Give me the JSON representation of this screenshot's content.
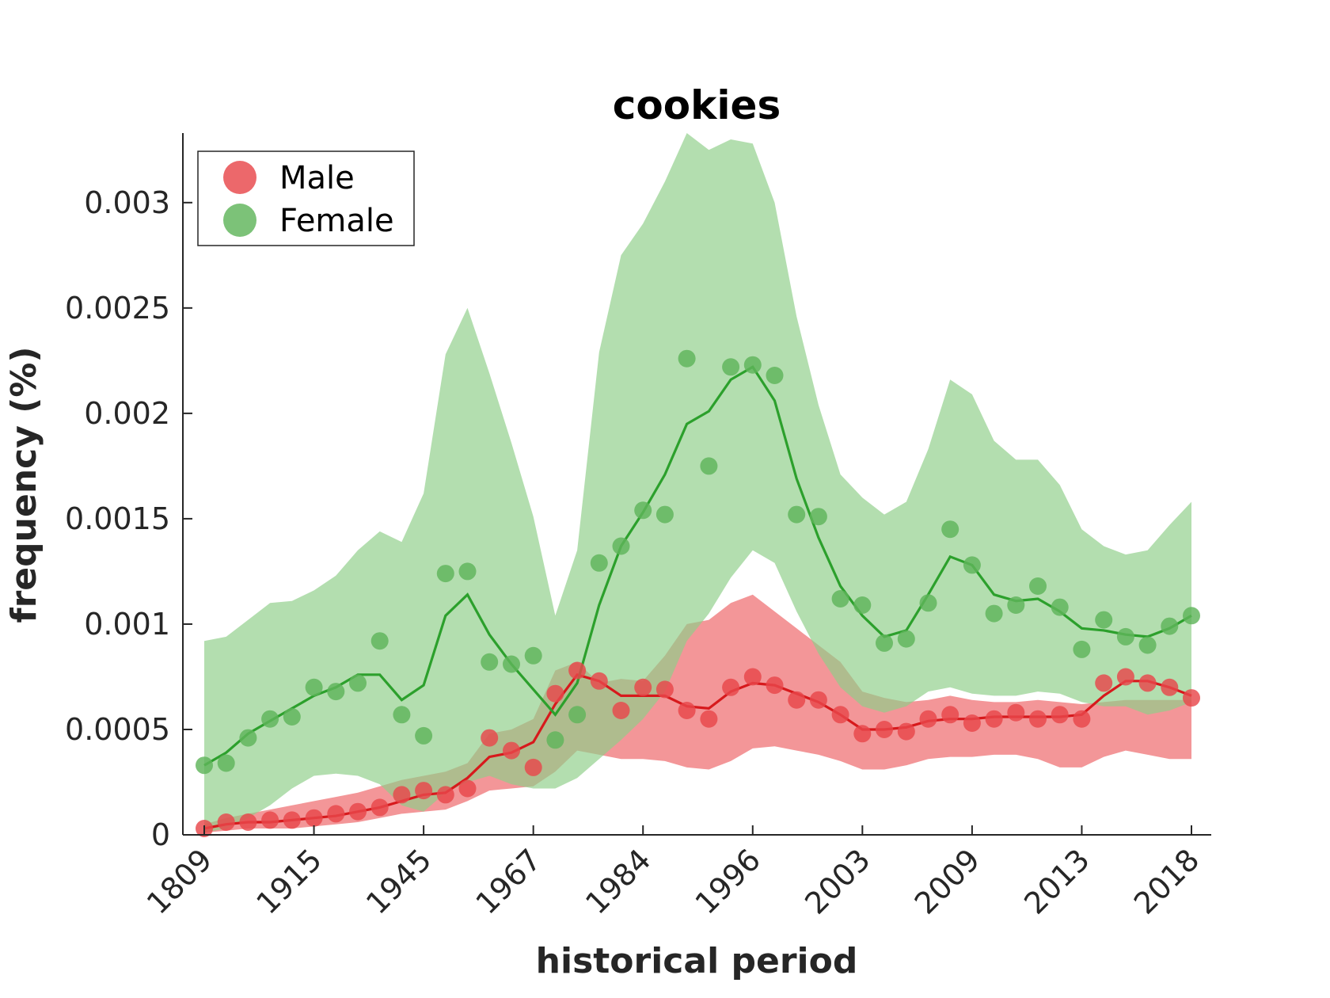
{
  "chart_data": {
    "type": "line",
    "title": "cookies",
    "xlabel": "historical period",
    "ylabel": "frequency (%)",
    "ylim": [
      0,
      0.00333
    ],
    "yticks": [
      {
        "value": 0,
        "label": "0"
      },
      {
        "value": 0.0005,
        "label": "0.0005"
      },
      {
        "value": 0.001,
        "label": "0.001"
      },
      {
        "value": 0.0015,
        "label": "0.0015"
      },
      {
        "value": 0.002,
        "label": "0.002"
      },
      {
        "value": 0.0025,
        "label": "0.0025"
      },
      {
        "value": 0.003,
        "label": "0.003"
      }
    ],
    "n_points": 46,
    "xticks": [
      {
        "index": 0,
        "label": "1809"
      },
      {
        "index": 5,
        "label": "1915"
      },
      {
        "index": 10,
        "label": "1945"
      },
      {
        "index": 15,
        "label": "1967"
      },
      {
        "index": 20,
        "label": "1984"
      },
      {
        "index": 25,
        "label": "1996"
      },
      {
        "index": 30,
        "label": "2003"
      },
      {
        "index": 35,
        "label": "2009"
      },
      {
        "index": 40,
        "label": "2013"
      },
      {
        "index": 45,
        "label": "2018"
      }
    ],
    "legend": {
      "position": "top-left"
    },
    "series": [
      {
        "name": "Male",
        "marker_color": "#e8474b",
        "line_color": "#d7191c",
        "band_color": "#ee6a6c",
        "points": [
          3e-05,
          6e-05,
          6e-05,
          7e-05,
          7e-05,
          8e-05,
          0.0001,
          0.00011,
          0.00013,
          0.00019,
          0.00021,
          0.00019,
          0.00022,
          0.00046,
          0.0004,
          0.00032,
          0.00067,
          0.00078,
          0.00073,
          0.00059,
          0.0007,
          0.00069,
          0.00059,
          0.00055,
          0.0007,
          0.00075,
          0.00071,
          0.00064,
          0.00064,
          0.00057,
          0.00048,
          0.0005,
          0.00049,
          0.00055,
          0.00057,
          0.00053,
          0.00055,
          0.00058,
          0.00055,
          0.00057,
          0.00055,
          0.00072,
          0.00075,
          0.00072,
          0.0007,
          0.00065
        ],
        "trend": [
          3e-05,
          5e-05,
          6e-05,
          6e-05,
          7e-05,
          8e-05,
          9e-05,
          0.00011,
          0.00013,
          0.00016,
          0.00019,
          0.0002,
          0.00027,
          0.00037,
          0.00039,
          0.00044,
          0.00062,
          0.00076,
          0.00073,
          0.00066,
          0.00066,
          0.00066,
          0.00061,
          0.0006,
          0.00068,
          0.00072,
          0.00071,
          0.00067,
          0.00063,
          0.00057,
          0.0005,
          0.0005,
          0.00051,
          0.00054,
          0.00055,
          0.00055,
          0.00056,
          0.00056,
          0.00056,
          0.00056,
          0.00057,
          0.00066,
          0.00073,
          0.00073,
          0.0007,
          0.00066
        ],
        "band_upper": [
          5e-05,
          8e-05,
          0.0001,
          0.00012,
          0.00014,
          0.00016,
          0.00018,
          0.0002,
          0.00023,
          0.00026,
          0.00028,
          0.0003,
          0.00034,
          0.00048,
          0.0005,
          0.00055,
          0.00078,
          0.00082,
          0.00072,
          0.00074,
          0.00073,
          0.00085,
          0.001,
          0.00102,
          0.0011,
          0.00114,
          0.00106,
          0.00098,
          0.0009,
          0.00082,
          0.00068,
          0.00065,
          0.00063,
          0.00064,
          0.00066,
          0.00064,
          0.00063,
          0.00063,
          0.00064,
          0.00063,
          0.00062,
          0.00063,
          0.00064,
          0.00064,
          0.00064,
          0.00064
        ],
        "band_lower": [
          1e-05,
          2e-05,
          3e-05,
          3e-05,
          3e-05,
          4e-05,
          5e-05,
          6e-05,
          8e-05,
          0.0001,
          0.00011,
          0.00012,
          0.00016,
          0.00021,
          0.00022,
          0.00023,
          0.0003,
          0.0004,
          0.00038,
          0.00036,
          0.00036,
          0.00035,
          0.00032,
          0.00031,
          0.00035,
          0.00041,
          0.00042,
          0.0004,
          0.00038,
          0.00035,
          0.00031,
          0.00031,
          0.00033,
          0.00036,
          0.00037,
          0.00037,
          0.00038,
          0.00038,
          0.00036,
          0.00032,
          0.00032,
          0.00037,
          0.0004,
          0.00038,
          0.00036,
          0.00036
        ]
      },
      {
        "name": "Female",
        "marker_color": "#5fb55a",
        "line_color": "#2ca02c",
        "band_color": "#8fce89",
        "points": [
          0.00033,
          0.00034,
          0.00046,
          0.00055,
          0.00056,
          0.0007,
          0.00068,
          0.00072,
          0.00092,
          0.00057,
          0.00047,
          0.00124,
          0.00125,
          0.00082,
          0.00081,
          0.00085,
          0.00045,
          0.00057,
          0.00129,
          0.00137,
          0.00154,
          0.00152,
          0.00226,
          0.00175,
          0.00222,
          0.00223,
          0.00218,
          0.00152,
          0.00151,
          0.00112,
          0.00109,
          0.00091,
          0.00093,
          0.0011,
          0.00145,
          0.00128,
          0.00105,
          0.00109,
          0.00118,
          0.00108,
          0.00088,
          0.00102,
          0.00094,
          0.0009,
          0.00099,
          0.00104
        ],
        "trend": [
          0.00033,
          0.00039,
          0.00048,
          0.00054,
          0.0006,
          0.00066,
          0.0007,
          0.00076,
          0.00076,
          0.00064,
          0.00071,
          0.00104,
          0.00114,
          0.00095,
          0.00081,
          0.00069,
          0.00057,
          0.00072,
          0.00109,
          0.00137,
          0.00153,
          0.00171,
          0.00195,
          0.00201,
          0.00216,
          0.00222,
          0.00206,
          0.00169,
          0.00141,
          0.00118,
          0.00104,
          0.00094,
          0.00097,
          0.00114,
          0.00132,
          0.00128,
          0.00114,
          0.00111,
          0.00112,
          0.00106,
          0.00098,
          0.00097,
          0.00095,
          0.00094,
          0.00098,
          0.00104
        ],
        "band_upper": [
          0.00092,
          0.00094,
          0.00102,
          0.0011,
          0.00111,
          0.00116,
          0.00123,
          0.00135,
          0.00144,
          0.00139,
          0.00162,
          0.00228,
          0.0025,
          0.00219,
          0.00186,
          0.00151,
          0.00104,
          0.00135,
          0.00229,
          0.00275,
          0.0029,
          0.0031,
          0.00333,
          0.00325,
          0.0033,
          0.00328,
          0.003,
          0.00246,
          0.00204,
          0.00171,
          0.0016,
          0.00152,
          0.00158,
          0.00183,
          0.00216,
          0.00209,
          0.00187,
          0.00178,
          0.00178,
          0.00166,
          0.00145,
          0.00137,
          0.00133,
          0.00135,
          0.00147,
          0.00158
        ],
        "band_lower": [
          1e-05,
          3e-05,
          8e-05,
          0.00014,
          0.00022,
          0.00028,
          0.00029,
          0.00028,
          0.00024,
          0.00014,
          0.00011,
          0.0002,
          0.00025,
          0.00028,
          0.00024,
          0.00022,
          0.00022,
          0.00027,
          0.00036,
          0.00045,
          0.00055,
          0.00068,
          0.00092,
          0.00105,
          0.00122,
          0.00135,
          0.00129,
          0.00106,
          0.00086,
          0.0007,
          0.00061,
          0.00058,
          0.00061,
          0.00068,
          0.0007,
          0.00067,
          0.00066,
          0.00066,
          0.00068,
          0.00067,
          0.00063,
          0.00061,
          0.00061,
          0.00057,
          0.00059,
          0.00063
        ]
      }
    ]
  }
}
